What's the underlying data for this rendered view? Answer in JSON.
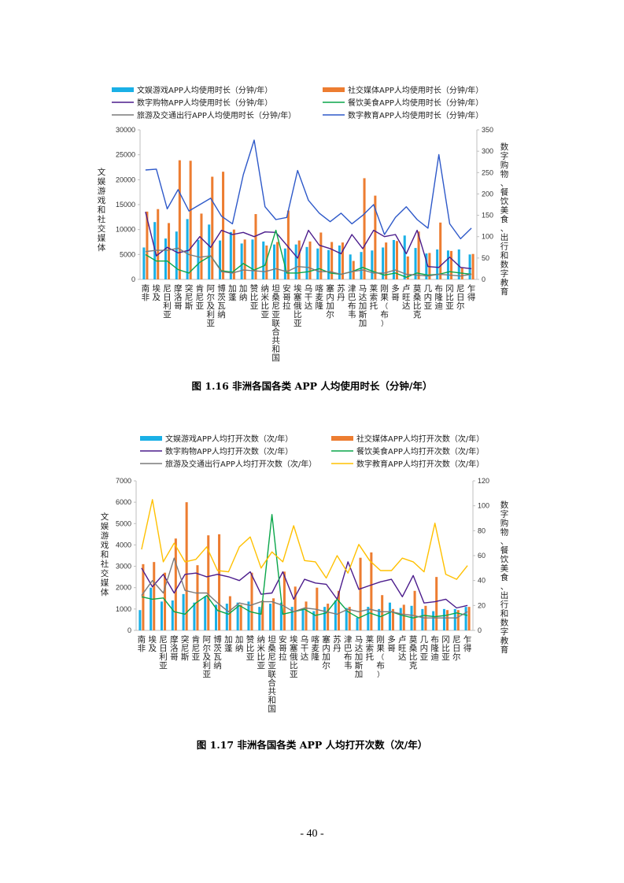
{
  "colors": {
    "ent": "#1ab0e6",
    "soc": "#ed7d31",
    "shop": "#4b1c8c",
    "food": "#0aa64a",
    "travel": "#7a7a7a",
    "edu1": "#2e59c9",
    "edu2": "#ffc000"
  },
  "countries": [
    "南非",
    "埃及",
    "尼日利亚",
    "摩洛哥",
    "突尼斯",
    "肯尼亚",
    "阿尔及利亚",
    "博茨瓦纳",
    "加蓬",
    "加纳",
    "赞比亚",
    "纳米比亚",
    "坦桑尼亚联合共和国",
    "安哥拉",
    "埃塞俄比亚",
    "乌干达",
    "喀麦隆",
    "塞内加尔",
    "苏丹",
    "津巴布韦",
    "马达加斯加",
    "莱索托",
    "刚果（布）",
    "多哥",
    "卢旺达",
    "莫桑比克",
    "几内亚",
    "布隆迪",
    "冈比亚",
    "尼日尔",
    "乍得"
  ],
  "chart_data": [
    {
      "type": "bar+line",
      "title": "图 1.16  非洲各国各类 APP 人均使用时长（分钟/年）",
      "ylabel": "文娱游戏和社交媒体",
      "y2label": "数字购物、餐饮美食、出行和数字教育",
      "ylim": [
        0,
        30000
      ],
      "yticks": [
        "0",
        "5000",
        "10000",
        "15000",
        "20000",
        "25000",
        "30000"
      ],
      "y2lim": [
        0,
        350
      ],
      "y2ticks": [
        "0",
        "50",
        "100",
        "150",
        "200",
        "250",
        "300",
        "350"
      ],
      "series": [
        {
          "name": "文娱游戏APP人均使用时长（分钟/年）",
          "kind": "bar",
          "axis": "left",
          "color": "ent",
          "values": [
            6400,
            11500,
            8200,
            9600,
            12100,
            7900,
            11000,
            7800,
            9500,
            7200,
            8000,
            7600,
            7000,
            6200,
            7000,
            6500,
            6200,
            5900,
            6800,
            5000,
            5500,
            5800,
            6400,
            7900,
            8800,
            6300,
            5200,
            6000,
            5800,
            6000,
            5000
          ]
        },
        {
          "name": "社交媒体APP人均使用时长（分钟/年）",
          "kind": "bar",
          "axis": "left",
          "color": "soc",
          "values": [
            13600,
            14100,
            11300,
            23900,
            23800,
            13200,
            20600,
            21600,
            10000,
            8000,
            13100,
            6800,
            7500,
            13800,
            7800,
            7600,
            9400,
            7500,
            7400,
            3700,
            20300,
            16800,
            7400,
            7700,
            4600,
            9600,
            5300,
            11400,
            5700,
            2300,
            5100
          ]
        },
        {
          "name": "数字购物APP人均使用时长（分钟/年）",
          "kind": "line",
          "axis": "right",
          "color": "shop",
          "values": [
            158,
            55,
            75,
            62,
            68,
            100,
            75,
            115,
            105,
            110,
            100,
            111,
            110,
            80,
            50,
            115,
            80,
            72,
            60,
            105,
            72,
            115,
            100,
            105,
            60,
            115,
            30,
            28,
            52,
            28,
            25
          ]
        },
        {
          "name": "餐饮美食APP人均使用时长（分钟/年）",
          "kind": "line",
          "axis": "right",
          "color": "food",
          "values": [
            58,
            43,
            43,
            23,
            15,
            40,
            55,
            20,
            17,
            37,
            22,
            33,
            115,
            15,
            15,
            18,
            25,
            15,
            12,
            18,
            28,
            18,
            10,
            15,
            5,
            15,
            10,
            12,
            18,
            15,
            12
          ]
        },
        {
          "name": "旅游及交通出行APP人均使用时长（分钟/年）",
          "kind": "line",
          "axis": "right",
          "color": "travel",
          "values": [
            65,
            68,
            68,
            73,
            58,
            52,
            55,
            18,
            15,
            22,
            20,
            18,
            25,
            18,
            30,
            28,
            18,
            18,
            12,
            18,
            22,
            15,
            15,
            22,
            12,
            10,
            8,
            12,
            10,
            8,
            12
          ]
        },
        {
          "name": "数字教育APP人均使用时长（分钟/年）",
          "kind": "line",
          "axis": "right",
          "color": "edu1",
          "values": [
            256,
            258,
            165,
            210,
            160,
            175,
            190,
            148,
            130,
            245,
            326,
            170,
            140,
            145,
            255,
            185,
            155,
            135,
            155,
            130,
            150,
            175,
            105,
            145,
            170,
            140,
            120,
            292,
            130,
            95,
            120
          ]
        }
      ]
    },
    {
      "type": "bar+line",
      "title": "图 1.17  非洲各国各类 APP 人均打开次数（次/年）",
      "ylabel": "文娱游戏和社交媒体",
      "y2label": "数字购物、餐饮美食、出行和数字教育",
      "ylim": [
        0,
        7000
      ],
      "yticks": [
        "0",
        "1000",
        "2000",
        "3000",
        "4000",
        "5000",
        "6000",
        "7000"
      ],
      "y2lim": [
        0,
        120
      ],
      "y2ticks": [
        "0",
        "20",
        "40",
        "60",
        "80",
        "100",
        "120"
      ],
      "series": [
        {
          "name": "文娱游戏APP人均打开次数（次/年）",
          "kind": "bar",
          "axis": "left",
          "color": "ent",
          "values": [
            950,
            2000,
            1350,
            1400,
            1700,
            1300,
            1600,
            1200,
            1250,
            1300,
            1350,
            1100,
            1250,
            1300,
            1100,
            1000,
            900,
            1100,
            1400,
            1050,
            600,
            1100,
            1000,
            1300,
            1050,
            1150,
            1000,
            900,
            1000,
            1000,
            1100
          ]
        },
        {
          "name": "社交媒体APP人均打开次数（次/年）",
          "kind": "bar",
          "axis": "left",
          "color": "soc",
          "values": [
            3100,
            3200,
            2700,
            4300,
            6000,
            3050,
            4450,
            4500,
            1600,
            1200,
            2700,
            1400,
            1500,
            2750,
            2050,
            1350,
            2000,
            1250,
            1850,
            1100,
            3400,
            3650,
            1650,
            1000,
            1200,
            1850,
            1150,
            2500,
            950,
            950,
            1100
          ]
        },
        {
          "name": "数字购物APP人均打开次数（次/年）",
          "kind": "line",
          "axis": "right",
          "color": "shop",
          "values": [
            50,
            35,
            45,
            30,
            45,
            46,
            43,
            45,
            43,
            40,
            47,
            29,
            30,
            47,
            25,
            41,
            38,
            37,
            25,
            55,
            33,
            36,
            39,
            41,
            27,
            44,
            22,
            23,
            25,
            18,
            20
          ]
        },
        {
          "name": "餐饮美食APP人均打开次数（次/年）",
          "kind": "line",
          "axis": "right",
          "color": "food",
          "values": [
            27,
            25,
            26,
            15,
            13,
            22,
            28,
            16,
            13,
            20,
            15,
            13,
            93,
            13,
            15,
            17,
            12,
            14,
            25,
            15,
            10,
            14,
            11,
            15,
            12,
            10,
            12,
            11,
            12,
            14,
            12
          ]
        },
        {
          "name": "旅游及交通出行APP人均打开次数（次/年）",
          "kind": "line",
          "axis": "right",
          "color": "travel",
          "values": [
            28,
            40,
            30,
            58,
            32,
            30,
            30,
            22,
            15,
            22,
            20,
            23,
            23,
            20,
            15,
            18,
            17,
            15,
            13,
            17,
            15,
            17,
            15,
            15,
            13,
            12,
            10,
            10,
            10,
            10,
            15
          ]
        },
        {
          "name": "数字教育APP人均打开次数（次/年）",
          "kind": "line",
          "axis": "right",
          "color": "edu2",
          "values": [
            65,
            105,
            55,
            70,
            55,
            57,
            67,
            48,
            47,
            67,
            75,
            50,
            63,
            55,
            84,
            56,
            55,
            42,
            60,
            46,
            69,
            56,
            48,
            48,
            58,
            55,
            47,
            86,
            45,
            41,
            52
          ]
        }
      ]
    }
  ],
  "page_number": "- 40 -"
}
